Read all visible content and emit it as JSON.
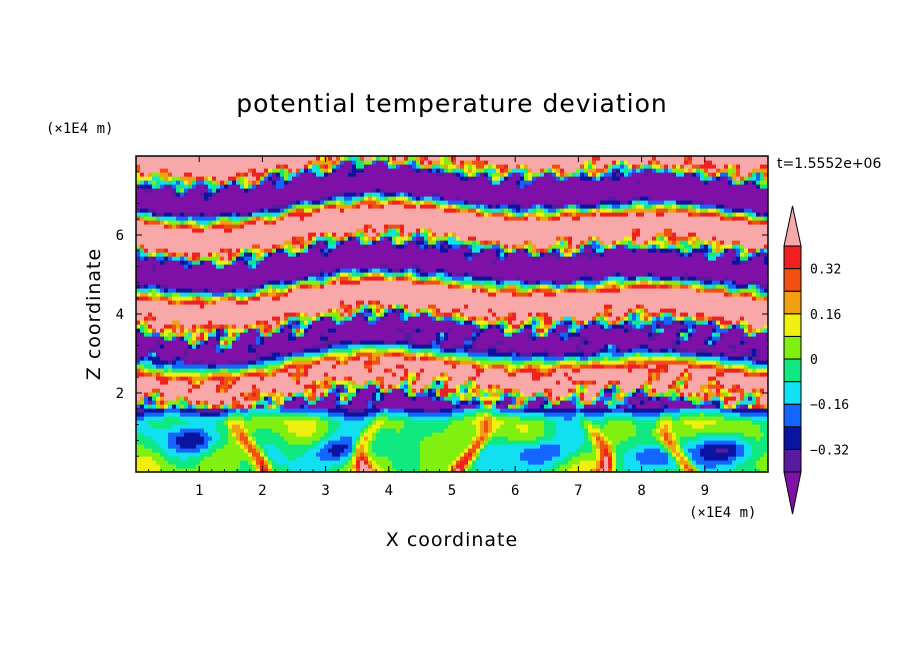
{
  "colors": {
    "levels": [
      "#7f10a8",
      "#5a1aa0",
      "#0a14a0",
      "#1464ff",
      "#10e0f0",
      "#10e880",
      "#80f010",
      "#f0f010",
      "#f0a010",
      "#f05010",
      "#f02020",
      "#f8a8a8"
    ],
    "background": "#ffffff"
  },
  "chart_data": {
    "type": "heatmap",
    "title": "potential temperature deviation",
    "xlabel": "X coordinate",
    "ylabel": "Z coordinate",
    "x_unit": "(×1E4 m)",
    "y_unit": "(×1E4 m)",
    "time_label": "t=1.5552e+06",
    "xlim": [
      0,
      10
    ],
    "ylim": [
      0,
      8
    ],
    "x_ticks": [
      1,
      2,
      3,
      4,
      5,
      6,
      7,
      8,
      9
    ],
    "x_tick_labels": [
      "1",
      "2",
      "3",
      "4",
      "5",
      "6",
      "7",
      "8",
      "9"
    ],
    "y_ticks": [
      2,
      4,
      6
    ],
    "y_tick_labels": [
      "2",
      "4",
      "6"
    ],
    "colorbar": {
      "levels": [
        -0.4,
        -0.32,
        -0.24,
        -0.16,
        -0.08,
        0,
        0.08,
        0.16,
        0.24,
        0.32,
        0.4
      ],
      "tick_values": [
        0.32,
        0.16,
        0,
        -0.16,
        -0.32
      ],
      "tick_labels": [
        "0.32",
        "0.16",
        "0",
        "−0.16",
        "−0.32"
      ],
      "extend": "both"
    },
    "bands": [
      {
        "z_range": [
          0,
          1.7
        ],
        "description": "convective boundary layer with mixed positive and negative deviations"
      },
      {
        "z_range": [
          1.7,
          3.5
        ],
        "description": "highly variable mixed layer"
      },
      {
        "z_range": [
          3.5,
          8
        ],
        "description": "alternating layers of strongly positive and strongly negative deviation"
      }
    ]
  }
}
